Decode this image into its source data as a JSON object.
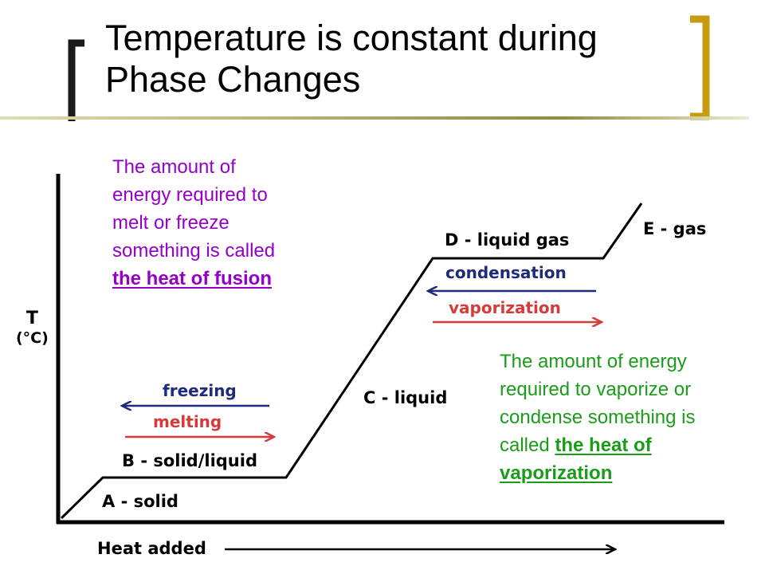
{
  "title": {
    "line1": "Temperature is constant during",
    "line2": "Phase Changes"
  },
  "notes": {
    "fusion": {
      "lines": [
        "The amount of",
        "energy required to",
        "melt or freeze",
        "something is called"
      ],
      "emphasis": "the heat of fusion"
    },
    "vaporization": {
      "lines": [
        "The amount of energy",
        "required to vaporize or",
        "condense something is"
      ],
      "lead": "called ",
      "emphasis_1": "the heat of",
      "emphasis_2": "vaporization"
    }
  },
  "diagram": {
    "y_axis_label_1": "T",
    "y_axis_label_2": "(°C)",
    "x_axis_label": "Heat added",
    "segments": {
      "a": "A - solid",
      "b": "B - solid/liquid",
      "c": "C - liquid",
      "d": "D - liquid gas",
      "e": "E - gas"
    },
    "processes": {
      "freezing": "freezing",
      "melting": "melting",
      "condensation": "condensation",
      "vaporization": "vaporization"
    }
  },
  "colors": {
    "bracket": "#c89a10",
    "fusion_text": "#9400c8",
    "vaporization_text": "#1a9c1a",
    "cooling_arrow": "#1e2a7a",
    "heating_arrow": "#d83a3a"
  }
}
